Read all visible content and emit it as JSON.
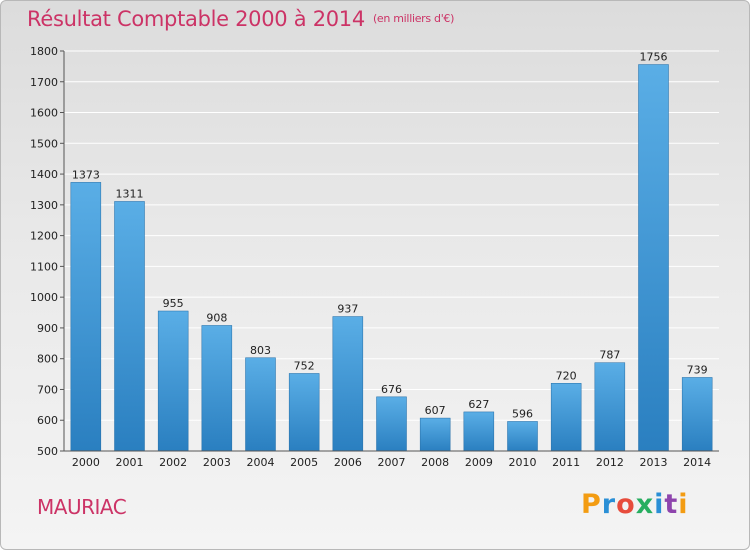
{
  "header": {
    "title": "Résultat Comptable 2000 à 2014",
    "unit": "(en milliers d'€)"
  },
  "footer": {
    "town": "MAURIAC",
    "logo_letters": [
      "P",
      "r",
      "o",
      "x",
      "i",
      "t",
      "i"
    ],
    "logo_colors": [
      "#f39c12",
      "#2a8fd6",
      "#e74c3c",
      "#27ae60",
      "#2a8fd6",
      "#8e44ad",
      "#f39c12"
    ]
  },
  "colors": {
    "accent": "#cc3366",
    "bar_top": "#5aaee6",
    "bar_bottom": "#2a7fc0"
  },
  "chart_data": {
    "type": "bar",
    "title": "Résultat Comptable 2000 à 2014",
    "subtitle": "(en milliers d'€)",
    "categories": [
      "2000",
      "2001",
      "2002",
      "2003",
      "2004",
      "2005",
      "2006",
      "2007",
      "2008",
      "2009",
      "2010",
      "2011",
      "2012",
      "2013",
      "2014"
    ],
    "values": [
      1373,
      1311,
      955,
      908,
      803,
      752,
      937,
      676,
      607,
      627,
      596,
      720,
      787,
      1756,
      739
    ],
    "ylim": [
      500,
      1800
    ],
    "yticks": [
      500,
      600,
      700,
      800,
      900,
      1000,
      1100,
      1200,
      1300,
      1400,
      1500,
      1600,
      1700,
      1800
    ],
    "grid": true
  }
}
